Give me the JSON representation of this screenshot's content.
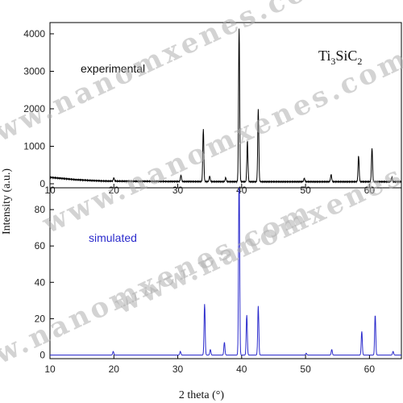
{
  "chart_data": [
    {
      "type": "line",
      "title": "",
      "xlabel": "",
      "ylabel": "",
      "xlim": [
        10,
        65
      ],
      "ylim": [
        0,
        4300
      ],
      "xticks": [
        10,
        20,
        30,
        40,
        50,
        60
      ],
      "yticks": [
        0,
        1000,
        2000,
        3000,
        4000
      ],
      "annotations": {
        "series_label": "experimental",
        "formula": {
          "base1": "Ti",
          "sub1": "3",
          "base2": "SiC",
          "sub2": "2"
        }
      },
      "color": "#000000",
      "baseline": {
        "x": [
          10,
          12,
          14,
          16,
          18,
          20,
          25,
          30,
          40,
          50,
          60,
          65
        ],
        "y": [
          170,
          140,
          110,
          90,
          75,
          70,
          65,
          60,
          55,
          55,
          55,
          55
        ]
      },
      "peaks": [
        {
          "x": 20.0,
          "y": 160
        },
        {
          "x": 30.5,
          "y": 230
        },
        {
          "x": 34.0,
          "y": 1450
        },
        {
          "x": 35.0,
          "y": 200
        },
        {
          "x": 37.5,
          "y": 160
        },
        {
          "x": 39.6,
          "y": 4150
        },
        {
          "x": 40.9,
          "y": 1150
        },
        {
          "x": 42.6,
          "y": 2000
        },
        {
          "x": 49.8,
          "y": 150
        },
        {
          "x": 54.0,
          "y": 250
        },
        {
          "x": 58.3,
          "y": 750
        },
        {
          "x": 60.4,
          "y": 950
        },
        {
          "x": 63.5,
          "y": 170
        }
      ]
    },
    {
      "type": "line",
      "title": "",
      "xlabel": "2 theta (°)",
      "ylabel": "",
      "xlim": [
        10,
        65
      ],
      "ylim": [
        -2,
        92
      ],
      "xticks": [
        10,
        20,
        30,
        40,
        50,
        60
      ],
      "yticks": [
        0,
        20,
        40,
        60,
        80
      ],
      "annotations": {
        "series_label": "simulated"
      },
      "color": "#2b2bcc",
      "baseline": {
        "x": [
          10,
          65
        ],
        "y": [
          0,
          0
        ]
      },
      "peaks": [
        {
          "x": 19.9,
          "y": 2
        },
        {
          "x": 30.4,
          "y": 2
        },
        {
          "x": 34.2,
          "y": 28
        },
        {
          "x": 35.1,
          "y": 3
        },
        {
          "x": 37.3,
          "y": 7
        },
        {
          "x": 39.6,
          "y": 100
        },
        {
          "x": 40.8,
          "y": 22
        },
        {
          "x": 42.6,
          "y": 27
        },
        {
          "x": 50.1,
          "y": 1
        },
        {
          "x": 54.1,
          "y": 3
        },
        {
          "x": 58.8,
          "y": 13
        },
        {
          "x": 60.9,
          "y": 22
        },
        {
          "x": 63.7,
          "y": 2
        }
      ]
    }
  ],
  "shared_ylabel": "Intensity (a.u.)",
  "watermark_text": "www.nanomxenes.com"
}
